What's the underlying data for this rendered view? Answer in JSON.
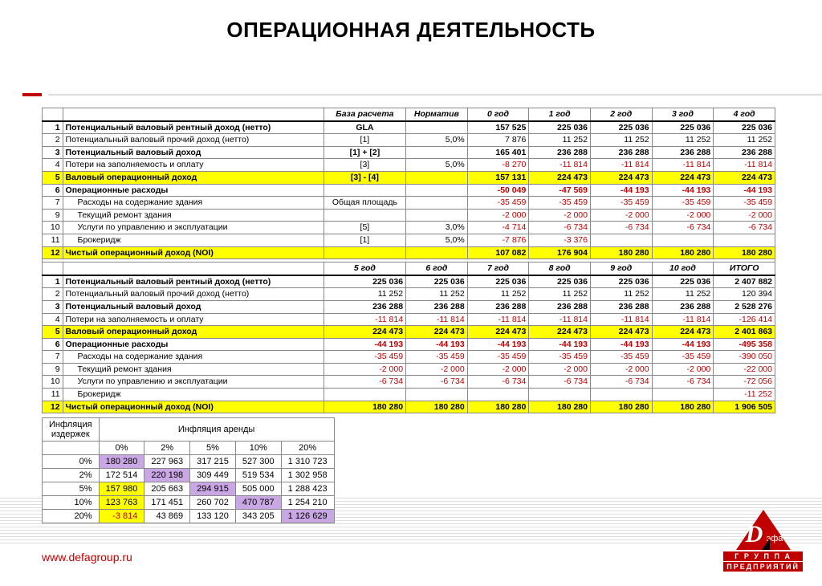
{
  "title": "ОПЕРАЦИОННАЯ ДЕЯТЕЛЬНОСТЬ",
  "footer_url": "www.defagroup.ru",
  "logo": {
    "band1": "Г Р У П П А",
    "band2": "ПРЕДПРИЯТИЙ"
  },
  "colors": {
    "accent": "#c00000",
    "highlight": "#ffff00",
    "diag": "#c9a6e4",
    "grid": "#888888",
    "hatch": "#c4c4c4"
  },
  "t1": {
    "headers": [
      "База расчета",
      "Норматив",
      "0 год",
      "1 год",
      "2 год",
      "3 год",
      "4 год"
    ],
    "rows": [
      {
        "n": "1",
        "label": "Потенциальный валовый рентный доход (нетто)",
        "bold": true,
        "base": "GLA",
        "norm": "",
        "v": [
          "157 525",
          "225 036",
          "225 036",
          "225 036",
          "225 036"
        ]
      },
      {
        "n": "2",
        "label": "Потенциальный валовый прочий доход (нетто)",
        "base": "[1]",
        "norm": "5,0%",
        "v": [
          "7 876",
          "11 252",
          "11 252",
          "11 252",
          "11 252"
        ]
      },
      {
        "n": "3",
        "label": "Потенциальный валовый доход",
        "bold": true,
        "base": "[1] + [2]",
        "norm": "",
        "v": [
          "165 401",
          "236 288",
          "236 288",
          "236 288",
          "236 288"
        ]
      },
      {
        "n": "4",
        "label": "Потери на заполняемость и оплату",
        "base": "[3]",
        "norm": "5,0%",
        "v": [
          "-8 270",
          "-11 814",
          "-11 814",
          "-11 814",
          "-11 814"
        ],
        "neg": true
      },
      {
        "n": "5",
        "label": "Валовый операционный доход",
        "hl": true,
        "base": "[3] - [4]",
        "norm": "",
        "v": [
          "157 131",
          "224 473",
          "224 473",
          "224 473",
          "224 473"
        ]
      },
      {
        "n": "6",
        "label": "Операционные расходы",
        "bold": true,
        "base": "",
        "norm": "",
        "v": [
          "-50 049",
          "-47 569",
          "-44 193",
          "-44 193",
          "-44 193"
        ],
        "neg": true
      },
      {
        "n": "7",
        "label": "Расходы на содержание здания",
        "indent": true,
        "base": "Общая площадь",
        "norm": "",
        "v": [
          "-35 459",
          "-35 459",
          "-35 459",
          "-35 459",
          "-35 459"
        ],
        "neg": true
      },
      {
        "n": "9",
        "label": "Текущий ремонт здания",
        "indent": true,
        "base": "",
        "norm": "",
        "v": [
          "-2 000",
          "-2 000",
          "-2 000",
          "-2 000",
          "-2 000"
        ],
        "neg": true
      },
      {
        "n": "10",
        "label": "Услуги по управлению и эксплуатации",
        "indent": true,
        "base": "[5]",
        "norm": "3,0%",
        "v": [
          "-4 714",
          "-6 734",
          "-6 734",
          "-6 734",
          "-6 734"
        ],
        "neg": true
      },
      {
        "n": "11",
        "label": "Брокеридж",
        "indent": true,
        "base": "[1]",
        "norm": "5,0%",
        "v": [
          "-7 876",
          "-3 376",
          "",
          "",
          ""
        ],
        "neg": true
      },
      {
        "n": "12",
        "label": "Чистый операционный доход (NOI)",
        "hl": true,
        "base": "",
        "norm": "",
        "v": [
          "107 082",
          "176 904",
          "180 280",
          "180 280",
          "180 280"
        ]
      }
    ]
  },
  "t2": {
    "headers": [
      "5 год",
      "6 год",
      "7 год",
      "8 год",
      "9 год",
      "10 год",
      "ИТОГО"
    ],
    "rows": [
      {
        "n": "1",
        "label": "Потенциальный валовый рентный доход (нетто)",
        "bold": true,
        "v": [
          "225 036",
          "225 036",
          "225 036",
          "225 036",
          "225 036",
          "225 036",
          "2 407 882"
        ]
      },
      {
        "n": "2",
        "label": "Потенциальный валовый прочий доход (нетто)",
        "v": [
          "11 252",
          "11 252",
          "11 252",
          "11 252",
          "11 252",
          "11 252",
          "120 394"
        ]
      },
      {
        "n": "3",
        "label": "Потенциальный валовый доход",
        "bold": true,
        "v": [
          "236 288",
          "236 288",
          "236 288",
          "236 288",
          "236 288",
          "236 288",
          "2 528 276"
        ]
      },
      {
        "n": "4",
        "label": "Потери на заполняемость и оплату",
        "v": [
          "-11 814",
          "-11 814",
          "-11 814",
          "-11 814",
          "-11 814",
          "-11 814",
          "-126 414"
        ],
        "neg": true
      },
      {
        "n": "5",
        "label": "Валовый операционный доход",
        "hl": true,
        "v": [
          "224 473",
          "224 473",
          "224 473",
          "224 473",
          "224 473",
          "224 473",
          "2 401 863"
        ]
      },
      {
        "n": "6",
        "label": "Операционные расходы",
        "bold": true,
        "v": [
          "-44 193",
          "-44 193",
          "-44 193",
          "-44 193",
          "-44 193",
          "-44 193",
          "-495 358"
        ],
        "neg": true
      },
      {
        "n": "7",
        "label": "Расходы на содержание здания",
        "indent": true,
        "v": [
          "-35 459",
          "-35 459",
          "-35 459",
          "-35 459",
          "-35 459",
          "-35 459",
          "-390 050"
        ],
        "neg": true
      },
      {
        "n": "9",
        "label": "Текущий ремонт здания",
        "indent": true,
        "v": [
          "-2 000",
          "-2 000",
          "-2 000",
          "-2 000",
          "-2 000",
          "-2 000",
          "-22 000"
        ],
        "neg": true
      },
      {
        "n": "10",
        "label": "Услуги по управлению и эксплуатации",
        "indent": true,
        "v": [
          "-6 734",
          "-6 734",
          "-6 734",
          "-6 734",
          "-6 734",
          "-6 734",
          "-72 056"
        ],
        "neg": true
      },
      {
        "n": "11",
        "label": "Брокеридж",
        "indent": true,
        "v": [
          "",
          "",
          "",
          "",
          "",
          "",
          "-11 252"
        ],
        "neg": true
      },
      {
        "n": "12",
        "label": "Чистый операционный доход (NOI)",
        "hl": true,
        "v": [
          "180 280",
          "180 280",
          "180 280",
          "180 280",
          "180 280",
          "180 280",
          "1 906 505"
        ]
      }
    ]
  },
  "sens": {
    "row_header": "Инфляция издержек",
    "col_header": "Инфляция аренды",
    "cols": [
      "0%",
      "2%",
      "5%",
      "10%",
      "20%"
    ],
    "rows": [
      {
        "h": "0%",
        "v": [
          "180 280",
          "227 963",
          "317 215",
          "527 300",
          "1 310 723"
        ],
        "yel": [
          0
        ]
      },
      {
        "h": "2%",
        "v": [
          "172 514",
          "220 198",
          "309 449",
          "519 534",
          "1 302 958"
        ]
      },
      {
        "h": "5%",
        "v": [
          "157 980",
          "205 663",
          "294 915",
          "505 000",
          "1 288 423"
        ],
        "yel": [
          0
        ]
      },
      {
        "h": "10%",
        "v": [
          "123 763",
          "171 451",
          "260 702",
          "470 787",
          "1 254 210"
        ],
        "yel": [
          0
        ]
      },
      {
        "h": "20%",
        "v": [
          "-3 814",
          "43 869",
          "133 120",
          "343 205",
          "1 126 629"
        ],
        "yel": [
          0
        ],
        "negIdx": [
          0
        ]
      }
    ],
    "diag": [
      [
        0,
        0
      ],
      [
        1,
        1
      ],
      [
        2,
        2
      ],
      [
        3,
        3
      ],
      [
        4,
        4
      ]
    ]
  }
}
